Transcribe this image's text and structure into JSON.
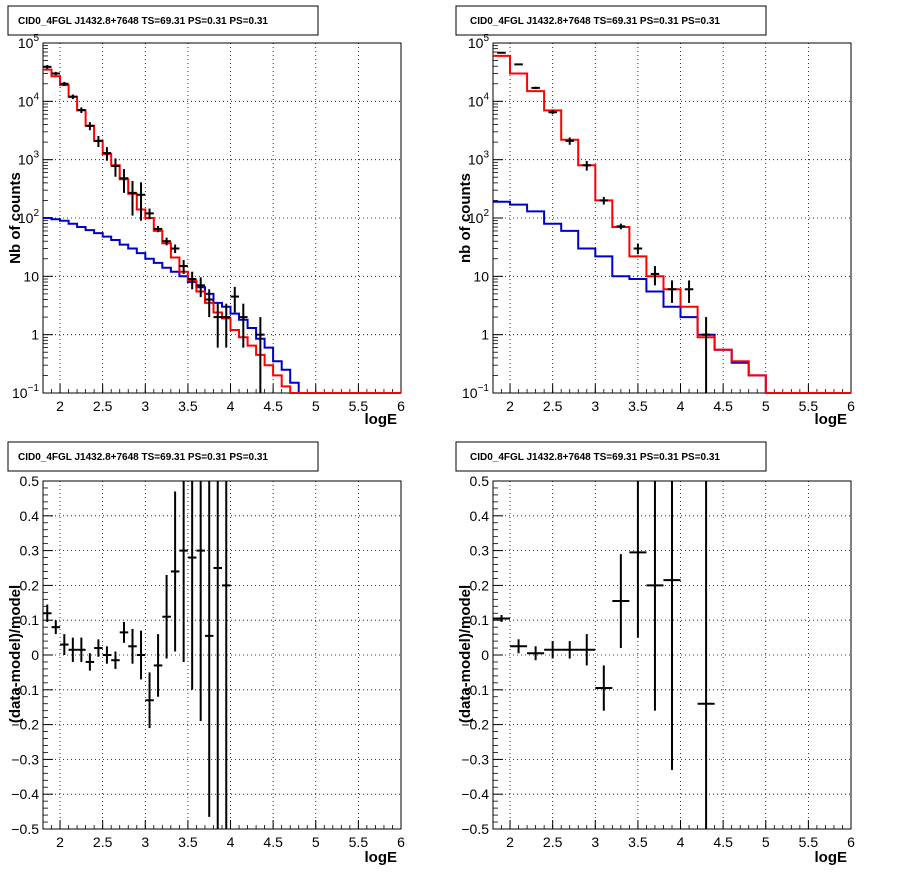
{
  "colors": {
    "data": "#000000",
    "model_total": "#ff0000",
    "model_source": "#0000cc",
    "grid": "#000000"
  },
  "chart_data": [
    {
      "type": "line",
      "title": "CID0_4FGL J1432.8+7648 TS=69.31 PS=0.31 PS=0.31",
      "xlabel": "logE",
      "ylabel": "Nb of counts",
      "xlim": [
        1.8,
        6.0
      ],
      "ylim": [
        0.1,
        100000
      ],
      "log_y": true,
      "grid": true,
      "x_ticks": [
        "2",
        "2.5",
        "3",
        "3.5",
        "4",
        "4.5",
        "5",
        "5.5",
        "6"
      ],
      "y_ticks": [
        "10^-1",
        "1",
        "10",
        "10^2",
        "10^3",
        "10^4",
        "10^5"
      ],
      "bin_edges": [
        1.8,
        1.9,
        2.0,
        2.1,
        2.2,
        2.3,
        2.4,
        2.5,
        2.6,
        2.7,
        2.8,
        2.9,
        3.0,
        3.1,
        3.2,
        3.3,
        3.4,
        3.5,
        3.6,
        3.7,
        3.8,
        3.9,
        4.0,
        4.1,
        4.2,
        4.3,
        4.4,
        4.5,
        4.6,
        4.7,
        4.8,
        4.9,
        5.0,
        5.1,
        5.2,
        5.3,
        5.4,
        5.5,
        5.6,
        5.7,
        5.8,
        5.9,
        6.0
      ],
      "series": [
        {
          "values": [
            35000,
            27000,
            19000,
            12000,
            7000,
            3800,
            2100,
            1250,
            800,
            460,
            260,
            140,
            100,
            60,
            37,
            21,
            12,
            8.5,
            5.5,
            3.5,
            2.4,
            1.9,
            1.2,
            0.9,
            0.65,
            0.45,
            0.3,
            0.2,
            0.13,
            0.1,
            0.1,
            0.1,
            0.1,
            0.1,
            0.1,
            0.1,
            0.1,
            0.1,
            0.1,
            0.1,
            0.1,
            0.1
          ]
        },
        {
          "values": [
            100,
            95,
            90,
            80,
            70,
            62,
            55,
            48,
            42,
            35,
            30,
            25,
            20,
            17,
            14,
            12,
            10,
            8,
            6.5,
            5,
            3.5,
            3,
            2.3,
            1.8,
            1.3,
            0.85,
            0.6,
            0.35,
            0.25,
            0.15,
            0.1,
            0.1,
            0.1,
            0.1,
            0.1,
            0.1,
            0.1,
            0.1,
            0.1,
            0.1,
            0.1,
            0.1
          ]
        }
      ],
      "points": [
        {
          "x": 1.85,
          "y": 39000,
          "err": 3000
        },
        {
          "x": 1.95,
          "y": 30000,
          "err": 2000
        },
        {
          "x": 2.05,
          "y": 20000,
          "err": 1500
        },
        {
          "x": 2.15,
          "y": 12000,
          "err": 1100
        },
        {
          "x": 2.25,
          "y": 7100,
          "err": 800
        },
        {
          "x": 2.35,
          "y": 3800,
          "err": 600
        },
        {
          "x": 2.45,
          "y": 2100,
          "err": 450
        },
        {
          "x": 2.55,
          "y": 1300,
          "err": 340
        },
        {
          "x": 2.65,
          "y": 780,
          "err": 270
        },
        {
          "x": 2.75,
          "y": 480,
          "err": 210
        },
        {
          "x": 2.85,
          "y": 270,
          "err": 160
        },
        {
          "x": 2.95,
          "y": 250,
          "err": 160
        },
        {
          "x": 3.05,
          "y": 120,
          "err": 25
        },
        {
          "x": 3.15,
          "y": 65,
          "err": 8
        },
        {
          "x": 3.25,
          "y": 40,
          "err": 6
        },
        {
          "x": 3.35,
          "y": 30,
          "err": 5
        },
        {
          "x": 3.45,
          "y": 15,
          "err": 4
        },
        {
          "x": 3.55,
          "y": 9,
          "err": 3
        },
        {
          "x": 3.65,
          "y": 7,
          "err": 2.6
        },
        {
          "x": 3.75,
          "y": 4,
          "err": 2
        },
        {
          "x": 3.85,
          "y": 2,
          "err": 1.4
        },
        {
          "x": 3.95,
          "y": 2,
          "err": 1.4
        },
        {
          "x": 4.05,
          "y": 4.5,
          "err": 2.1
        },
        {
          "x": 4.15,
          "y": 2,
          "err": 1.4
        },
        {
          "x": 4.35,
          "y": 1,
          "err": 1
        }
      ]
    },
    {
      "type": "line",
      "title": "CID0_4FGL J1432.8+7648 TS=69.31 PS=0.31 PS=0.31",
      "xlabel": "logE",
      "ylabel": "nb of counts",
      "xlim": [
        1.8,
        6.0
      ],
      "ylim": [
        0.1,
        100000
      ],
      "log_y": true,
      "grid": true,
      "x_ticks": [
        "2",
        "2.5",
        "3",
        "3.5",
        "4",
        "4.5",
        "5",
        "5.5",
        "6"
      ],
      "y_ticks": [
        "10^-1",
        "1",
        "10",
        "10^2",
        "10^3",
        "10^4",
        "10^5"
      ],
      "bin_edges": [
        1.8,
        2.0,
        2.2,
        2.4,
        2.6,
        2.8,
        3.0,
        3.2,
        3.4,
        3.6,
        3.8,
        4.0,
        4.2,
        4.4,
        4.6,
        4.8,
        5.0,
        5.2,
        5.4,
        5.6,
        5.8,
        6.0
      ],
      "series": [
        {
          "values": [
            60000,
            30000,
            15000,
            7000,
            2200,
            800,
            200,
            70,
            22,
            10,
            6,
            3,
            0.9,
            0.55,
            0.35,
            0.2,
            0.1,
            0.1,
            0.1,
            0.1,
            0.1
          ]
        },
        {
          "values": [
            190,
            170,
            130,
            80,
            60,
            30,
            22,
            10,
            9,
            5.5,
            3,
            2,
            1,
            0.55,
            0.33,
            0.2,
            0.1,
            0.1,
            0.1,
            0.1,
            0.1
          ]
        }
      ],
      "points": [
        {
          "x": 1.9,
          "y": 68000,
          "err": 1000
        },
        {
          "x": 2.1,
          "y": 43000,
          "err": 1000
        },
        {
          "x": 2.3,
          "y": 17000,
          "err": 800
        },
        {
          "x": 2.5,
          "y": 6500,
          "err": 500
        },
        {
          "x": 2.7,
          "y": 2100,
          "err": 300
        },
        {
          "x": 2.9,
          "y": 800,
          "err": 150
        },
        {
          "x": 3.1,
          "y": 200,
          "err": 30
        },
        {
          "x": 3.3,
          "y": 72,
          "err": 8
        },
        {
          "x": 3.5,
          "y": 30,
          "err": 6
        },
        {
          "x": 3.7,
          "y": 11,
          "err": 4
        },
        {
          "x": 3.9,
          "y": 6,
          "err": 2.5
        },
        {
          "x": 4.1,
          "y": 6,
          "err": 2.5
        },
        {
          "x": 4.3,
          "y": 1,
          "err": 1
        }
      ]
    },
    {
      "type": "scatter",
      "title": "CID0_4FGL J1432.8+7648 TS=69.31 PS=0.31 PS=0.31",
      "xlabel": "logE",
      "ylabel": "(data-model)/model",
      "xlim": [
        1.8,
        6.0
      ],
      "ylim": [
        -0.5,
        0.5
      ],
      "grid": true,
      "x_ticks": [
        "2",
        "2.5",
        "3",
        "3.5",
        "4",
        "4.5",
        "5",
        "5.5",
        "6"
      ],
      "y_ticks": [
        "−0.5",
        "−0.4",
        "−0.3",
        "−0.2",
        "−0.1",
        "0",
        "0.1",
        "0.2",
        "0.3",
        "0.4",
        "0.5"
      ],
      "xerr": 0.05,
      "points": [
        {
          "x": 1.85,
          "y": 0.12,
          "err": 0.025
        },
        {
          "x": 1.95,
          "y": 0.08,
          "err": 0.02
        },
        {
          "x": 2.05,
          "y": 0.03,
          "err": 0.03
        },
        {
          "x": 2.15,
          "y": 0.015,
          "err": 0.035
        },
        {
          "x": 2.25,
          "y": 0.015,
          "err": 0.035
        },
        {
          "x": 2.35,
          "y": -0.02,
          "err": 0.025
        },
        {
          "x": 2.45,
          "y": 0.02,
          "err": 0.025
        },
        {
          "x": 2.55,
          "y": 0.0,
          "err": 0.025
        },
        {
          "x": 2.65,
          "y": -0.015,
          "err": 0.025
        },
        {
          "x": 2.75,
          "y": 0.065,
          "err": 0.03
        },
        {
          "x": 2.85,
          "y": 0.025,
          "err": 0.05
        },
        {
          "x": 2.95,
          "y": 0.0,
          "err": 0.07
        },
        {
          "x": 3.05,
          "y": -0.13,
          "err": 0.08
        },
        {
          "x": 3.15,
          "y": -0.03,
          "err": 0.09
        },
        {
          "x": 3.25,
          "y": 0.11,
          "err": 0.12
        },
        {
          "x": 3.35,
          "y": 0.24,
          "err": 0.23
        },
        {
          "x": 3.45,
          "y": 0.3,
          "err": 0.32
        },
        {
          "x": 3.55,
          "y": 0.28,
          "err": 0.38
        },
        {
          "x": 3.65,
          "y": 0.3,
          "err": 0.49
        },
        {
          "x": 3.75,
          "y": 0.055,
          "err": 0.52
        },
        {
          "x": 3.85,
          "y": 0.25,
          "err": 0.75
        },
        {
          "x": 3.95,
          "y": 0.2,
          "err": 0.7
        }
      ]
    },
    {
      "type": "scatter",
      "title": "CID0_4FGL J1432.8+7648 TS=69.31 PS=0.31 PS=0.31",
      "xlabel": "logE",
      "ylabel": "(data-model)/model",
      "xlim": [
        1.8,
        6.0
      ],
      "ylim": [
        -0.5,
        0.5
      ],
      "grid": true,
      "x_ticks": [
        "2",
        "2.5",
        "3",
        "3.5",
        "4",
        "4.5",
        "5",
        "5.5",
        "6"
      ],
      "y_ticks": [
        "−0.5",
        "−0.4",
        "−0.3",
        "−0.2",
        "−0.1",
        "0",
        "0.1",
        "0.2",
        "0.3",
        "0.4",
        "0.5"
      ],
      "xerr": 0.1,
      "points": [
        {
          "x": 1.9,
          "y": 0.105,
          "err": 0.01
        },
        {
          "x": 2.1,
          "y": 0.025,
          "err": 0.02
        },
        {
          "x": 2.3,
          "y": 0.005,
          "err": 0.02
        },
        {
          "x": 2.5,
          "y": 0.015,
          "err": 0.025
        },
        {
          "x": 2.7,
          "y": 0.015,
          "err": 0.025
        },
        {
          "x": 2.9,
          "y": 0.015,
          "err": 0.045
        },
        {
          "x": 3.1,
          "y": -0.095,
          "err": 0.065
        },
        {
          "x": 3.3,
          "y": 0.155,
          "err": 0.135
        },
        {
          "x": 3.5,
          "y": 0.295,
          "err": 0.245
        },
        {
          "x": 3.7,
          "y": 0.2,
          "err": 0.36
        },
        {
          "x": 3.9,
          "y": 0.215,
          "err": 0.545
        },
        {
          "x": 4.3,
          "y": -0.14,
          "err": 0.65
        }
      ]
    }
  ]
}
